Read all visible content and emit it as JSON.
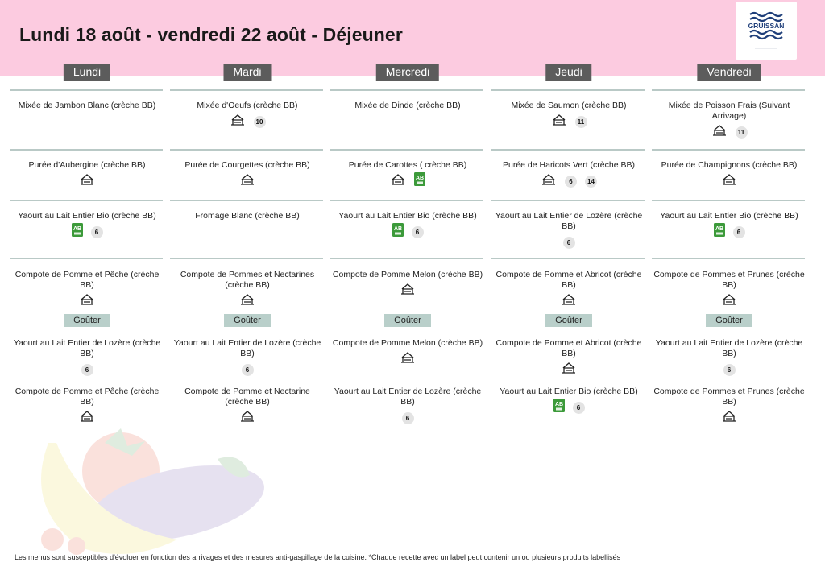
{
  "title": "Lundi 18 août - vendredi 22 août  - Déjeuner",
  "logo": {
    "text": "GRUISSAN",
    "tagline": "",
    "icon": "waves-logo"
  },
  "snack_label": "Goûter",
  "colors": {
    "header_bg": "#fccbe0",
    "day_tab_bg": "#5c5c5c",
    "separator": "#b9c9c6",
    "snack_bg": "#b9cfca",
    "ab_green": "#3c9a3a"
  },
  "days": [
    {
      "name": "Lundi",
      "lunch": [
        {
          "name": "Mixée de Jambon Blanc (crèche BB)",
          "labels": []
        },
        {
          "name": "Purée d'Aubergine (crèche BB)",
          "labels": [
            "fait-maison-icon"
          ]
        },
        {
          "name": "Yaourt au Lait Entier Bio  (crèche BB)",
          "labels": [
            "ab-icon",
            "6"
          ]
        },
        {
          "name": "Compote de Pomme et Pêche  (crèche BB)",
          "labels": [
            "fait-maison-icon"
          ]
        }
      ],
      "snack": [
        {
          "name": "Yaourt au Lait Entier de Lozère (crèche BB)",
          "labels": [
            "6"
          ]
        },
        {
          "name": "Compote de Pomme et Pêche  (crèche BB)",
          "labels": [
            "fait-maison-icon"
          ]
        }
      ]
    },
    {
      "name": "Mardi",
      "lunch": [
        {
          "name": "Mixée d'Oeufs (crèche BB)",
          "labels": [
            "fait-maison-icon",
            "10"
          ]
        },
        {
          "name": "Purée de Courgettes (crèche BB)",
          "labels": [
            "fait-maison-icon"
          ]
        },
        {
          "name": "Fromage Blanc (crèche BB)",
          "labels": []
        },
        {
          "name": "Compote de Pommes et Nectarines (crèche BB)",
          "labels": [
            "fait-maison-icon"
          ]
        }
      ],
      "snack": [
        {
          "name": "Yaourt au Lait Entier de Lozère (crèche BB)",
          "labels": [
            "6"
          ]
        },
        {
          "name": "Compote de Pomme et Nectarine (crèche BB)",
          "labels": [
            "fait-maison-icon"
          ]
        }
      ]
    },
    {
      "name": "Mercredi",
      "lunch": [
        {
          "name": "Mixée de Dinde (crèche BB)",
          "labels": []
        },
        {
          "name": "Purée de Carottes ( crèche BB)",
          "labels": [
            "fait-maison-icon",
            "ab-icon"
          ]
        },
        {
          "name": "Yaourt au Lait Entier Bio  (crèche BB)",
          "labels": [
            "ab-icon",
            "6"
          ]
        },
        {
          "name": "Compote de Pomme Melon (crèche BB)",
          "labels": [
            "fait-maison-icon"
          ]
        }
      ],
      "snack": [
        {
          "name": "Compote de Pomme Melon (crèche BB)",
          "labels": [
            "fait-maison-icon"
          ]
        },
        {
          "name": "Yaourt au Lait Entier de Lozère (crèche BB)",
          "labels": [
            "6"
          ]
        }
      ]
    },
    {
      "name": "Jeudi",
      "lunch": [
        {
          "name": "Mixée de Saumon  (crèche BB)",
          "labels": [
            "fait-maison-icon",
            "11"
          ]
        },
        {
          "name": "Purée de Haricots Vert (crèche BB)",
          "labels": [
            "fait-maison-icon",
            "6",
            "14"
          ]
        },
        {
          "name": "Yaourt au Lait Entier de Lozère (crèche BB)",
          "labels": [
            "6"
          ]
        },
        {
          "name": "Compote de Pomme et  Abricot (crèche BB)",
          "labels": [
            "fait-maison-icon"
          ]
        }
      ],
      "snack": [
        {
          "name": "Compote de Pomme et  Abricot (crèche BB)",
          "labels": [
            "fait-maison-icon"
          ]
        },
        {
          "name": "Yaourt au Lait Entier Bio  (crèche BB)",
          "labels": [
            "ab-icon",
            "6"
          ]
        }
      ]
    },
    {
      "name": "Vendredi",
      "lunch": [
        {
          "name": "Mixée de Poisson Frais (Suivant Arrivage)",
          "labels": [
            "fait-maison-icon",
            "11"
          ]
        },
        {
          "name": "Purée de Champignons (crèche BB)",
          "labels": [
            "fait-maison-icon"
          ]
        },
        {
          "name": "Yaourt au Lait Entier Bio  (crèche BB)",
          "labels": [
            "ab-icon",
            "6"
          ]
        },
        {
          "name": "Compote de Pommes et Prunes (crèche BB)",
          "labels": [
            "fait-maison-icon"
          ]
        }
      ],
      "snack": [
        {
          "name": "Yaourt au Lait Entier de Lozère (crèche BB)",
          "labels": [
            "6"
          ]
        },
        {
          "name": "Compote de Pommes et Prunes (crèche BB)",
          "labels": [
            "fait-maison-icon"
          ]
        }
      ]
    }
  ],
  "footnote": "Les menus sont susceptibles d'évoluer en fonction des arrivages et des mesures anti-gaspillage de la cuisine. *Chaque recette avec un label peut contenir un ou plusieurs produits labellisés"
}
